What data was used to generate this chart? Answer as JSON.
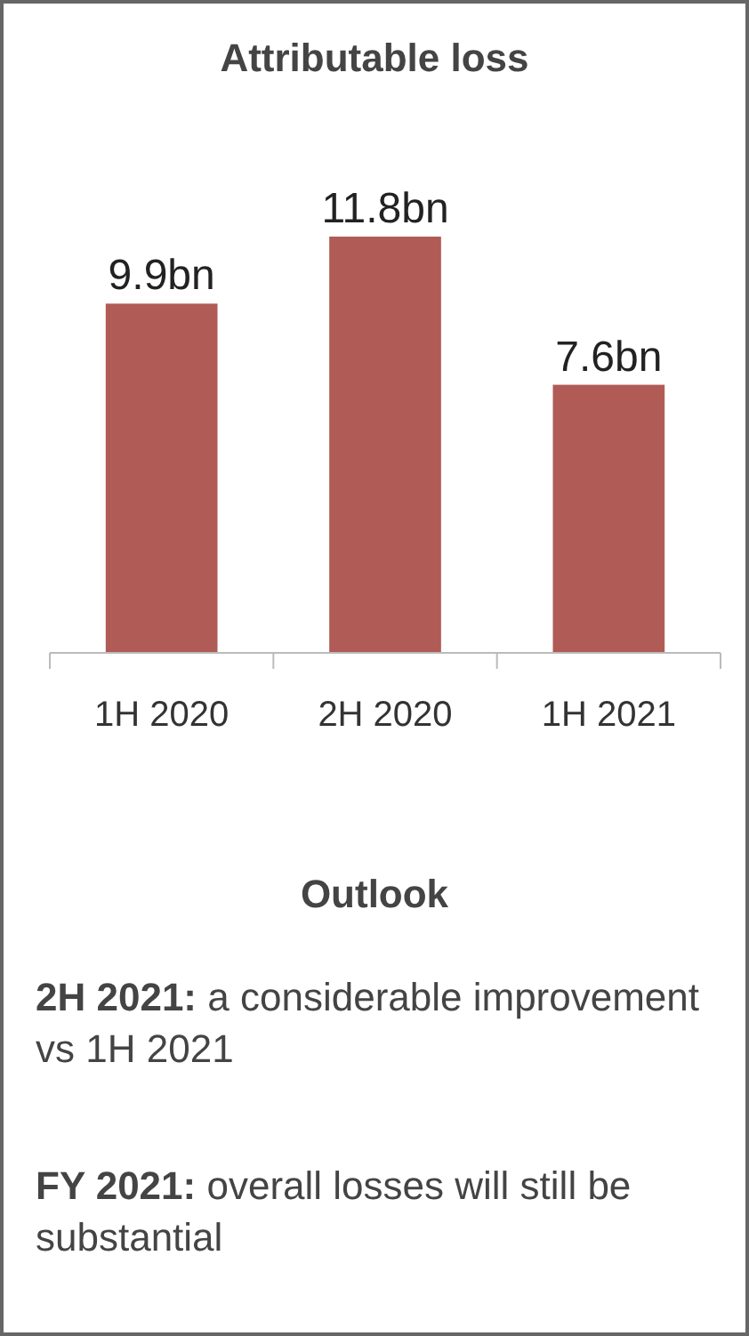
{
  "chart_data": {
    "type": "bar",
    "title": "Attributable loss",
    "categories": [
      "1H 2020",
      "2H 2020",
      "1H 2021"
    ],
    "values": [
      9.9,
      11.8,
      7.6
    ],
    "value_labels": [
      "9.9bn",
      "11.8bn",
      "7.6bn"
    ],
    "color": "#b05b56",
    "relative": false,
    "annotations": [
      "Outlook",
      "2H 2021: a considerable improvement vs 1H 2021",
      "FY 2021: overall losses will still be substantial"
    ]
  }
}
